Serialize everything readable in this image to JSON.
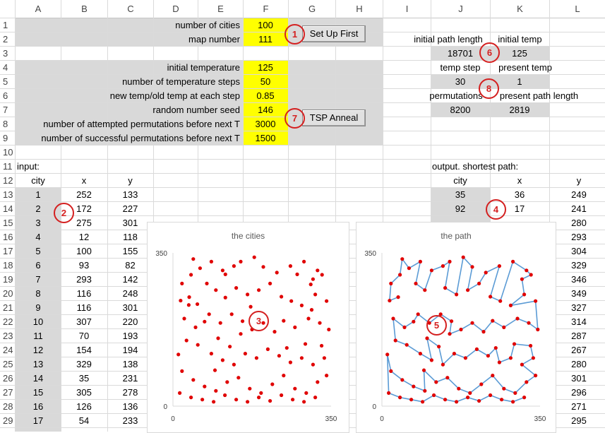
{
  "columns": [
    "A",
    "B",
    "C",
    "D",
    "E",
    "F",
    "G",
    "H",
    "I",
    "J",
    "K",
    "L"
  ],
  "rows": [
    "1",
    "2",
    "3",
    "4",
    "5",
    "6",
    "7",
    "8",
    "9",
    "10",
    "11",
    "12",
    "13",
    "14",
    "15",
    "16",
    "17",
    "18",
    "19",
    "20",
    "21",
    "22",
    "23",
    "24",
    "25",
    "26",
    "27",
    "28",
    "29"
  ],
  "params": [
    {
      "label": "number of cities",
      "value": "100"
    },
    {
      "label": "map number",
      "value": "111"
    },
    {
      "label": "initial temperature",
      "value": "125"
    },
    {
      "label": "number of temperature steps",
      "value": "50"
    },
    {
      "label": "new temp/old temp at each step",
      "value": "0.85"
    },
    {
      "label": "random number seed",
      "value": "146"
    },
    {
      "label": "number of attempted permutations before next T",
      "value": "3000"
    },
    {
      "label": "number of successful permutations before next T",
      "value": "1500"
    }
  ],
  "buttons": {
    "setup": "Set Up First",
    "anneal": "TSP Anneal"
  },
  "status": {
    "init_path_label": "initial path length",
    "init_temp_label": "initial temp",
    "init_path_value": "18701",
    "init_temp_value": "125",
    "temp_step_label": "temp  step",
    "present_temp_label": "present temp",
    "temp_step_value": "30",
    "present_temp_value": "1",
    "perm_label": "permutations",
    "present_path_label": "present path length",
    "perm_value": "8200",
    "present_path_value": "2819"
  },
  "input": {
    "title": "input:",
    "headers": [
      "city",
      "x",
      "y"
    ],
    "rows": [
      [
        "1",
        "252",
        "133"
      ],
      [
        "2",
        "172",
        "227"
      ],
      [
        "3",
        "275",
        "301"
      ],
      [
        "4",
        "12",
        "118"
      ],
      [
        "5",
        "100",
        "155"
      ],
      [
        "6",
        "93",
        "82"
      ],
      [
        "7",
        "293",
        "142"
      ],
      [
        "8",
        "116",
        "248"
      ],
      [
        "9",
        "116",
        "301"
      ],
      [
        "10",
        "307",
        "220"
      ],
      [
        "11",
        "70",
        "193"
      ],
      [
        "12",
        "154",
        "194"
      ],
      [
        "13",
        "329",
        "138"
      ],
      [
        "14",
        "35",
        "231"
      ],
      [
        "15",
        "305",
        "278"
      ],
      [
        "16",
        "126",
        "136"
      ],
      [
        "17",
        "54",
        "233"
      ]
    ]
  },
  "output": {
    "title": "output.  shortest path:",
    "headers": [
      "city",
      "x",
      "y"
    ],
    "rows": [
      [
        "35",
        "36",
        "249"
      ],
      [
        "92",
        "17",
        "241"
      ]
    ],
    "y_tail": [
      "280",
      "293",
      "304",
      "329",
      "346",
      "349",
      "327",
      "314",
      "287",
      "267",
      "280",
      "301",
      "296",
      "271",
      "295"
    ]
  },
  "markers": [
    "1",
    "2",
    "3",
    "4",
    "5",
    "6",
    "7",
    "8"
  ],
  "chart_data": [
    {
      "type": "scatter",
      "title": "the cities",
      "xlim": [
        0,
        350
      ],
      "ylim": [
        0,
        350
      ],
      "xticks": [
        "0",
        "350"
      ],
      "yticks": [
        "0",
        "350"
      ],
      "color": "#e00000",
      "points": [
        [
          252,
          133
        ],
        [
          172,
          227
        ],
        [
          275,
          301
        ],
        [
          12,
          118
        ],
        [
          100,
          155
        ],
        [
          93,
          82
        ],
        [
          293,
          142
        ],
        [
          116,
          248
        ],
        [
          116,
          301
        ],
        [
          307,
          220
        ],
        [
          70,
          193
        ],
        [
          154,
          194
        ],
        [
          329,
          138
        ],
        [
          35,
          231
        ],
        [
          305,
          278
        ],
        [
          126,
          136
        ],
        [
          54,
          233
        ],
        [
          36,
          249
        ],
        [
          17,
          241
        ],
        [
          45,
          336
        ],
        [
          60,
          315
        ],
        [
          85,
          330
        ],
        [
          110,
          310
        ],
        [
          135,
          320
        ],
        [
          150,
          330
        ],
        [
          180,
          340
        ],
        [
          200,
          318
        ],
        [
          230,
          305
        ],
        [
          260,
          320
        ],
        [
          290,
          330
        ],
        [
          320,
          310
        ],
        [
          310,
          290
        ],
        [
          330,
          300
        ],
        [
          20,
          280
        ],
        [
          40,
          300
        ],
        [
          75,
          280
        ],
        [
          95,
          265
        ],
        [
          140,
          270
        ],
        [
          165,
          255
        ],
        [
          190,
          265
        ],
        [
          215,
          280
        ],
        [
          240,
          250
        ],
        [
          262,
          240
        ],
        [
          285,
          230
        ],
        [
          315,
          255
        ],
        [
          340,
          240
        ],
        [
          25,
          200
        ],
        [
          50,
          180
        ],
        [
          80,
          210
        ],
        [
          105,
          190
        ],
        [
          130,
          210
        ],
        [
          150,
          165
        ],
        [
          175,
          175
        ],
        [
          200,
          190
        ],
        [
          225,
          170
        ],
        [
          245,
          195
        ],
        [
          270,
          180
        ],
        [
          300,
          200
        ],
        [
          325,
          190
        ],
        [
          345,
          175
        ],
        [
          30,
          150
        ],
        [
          55,
          140
        ],
        [
          85,
          120
        ],
        [
          110,
          105
        ],
        [
          135,
          95
        ],
        [
          160,
          120
        ],
        [
          185,
          110
        ],
        [
          210,
          130
        ],
        [
          235,
          115
        ],
        [
          260,
          100
        ],
        [
          285,
          110
        ],
        [
          310,
          95
        ],
        [
          335,
          110
        ],
        [
          20,
          80
        ],
        [
          45,
          60
        ],
        [
          70,
          45
        ],
        [
          95,
          35
        ],
        [
          120,
          55
        ],
        [
          145,
          65
        ],
        [
          170,
          40
        ],
        [
          195,
          30
        ],
        [
          220,
          50
        ],
        [
          245,
          70
        ],
        [
          270,
          40
        ],
        [
          295,
          30
        ],
        [
          320,
          55
        ],
        [
          340,
          70
        ],
        [
          15,
          30
        ],
        [
          40,
          20
        ],
        [
          65,
          15
        ],
        [
          90,
          10
        ],
        [
          115,
          25
        ],
        [
          140,
          15
        ],
        [
          165,
          10
        ],
        [
          190,
          20
        ],
        [
          215,
          12
        ],
        [
          240,
          25
        ],
        [
          265,
          15
        ],
        [
          290,
          10
        ],
        [
          315,
          20
        ]
      ]
    },
    {
      "type": "line",
      "title": "the path",
      "xlim": [
        0,
        350
      ],
      "ylim": [
        0,
        350
      ],
      "xticks": [
        "0",
        "350"
      ],
      "yticks": [
        "0",
        "350"
      ],
      "line_color": "#5b9bd5",
      "marker_color": "#e00000",
      "points": [
        [
          36,
          249
        ],
        [
          17,
          241
        ],
        [
          20,
          280
        ],
        [
          40,
          300
        ],
        [
          45,
          336
        ],
        [
          60,
          315
        ],
        [
          85,
          330
        ],
        [
          75,
          280
        ],
        [
          95,
          265
        ],
        [
          110,
          310
        ],
        [
          135,
          320
        ],
        [
          150,
          330
        ],
        [
          140,
          270
        ],
        [
          165,
          255
        ],
        [
          180,
          340
        ],
        [
          200,
          318
        ],
        [
          190,
          265
        ],
        [
          215,
          280
        ],
        [
          230,
          305
        ],
        [
          260,
          320
        ],
        [
          240,
          250
        ],
        [
          262,
          240
        ],
        [
          290,
          330
        ],
        [
          320,
          310
        ],
        [
          330,
          300
        ],
        [
          310,
          290
        ],
        [
          315,
          255
        ],
        [
          285,
          230
        ],
        [
          340,
          240
        ],
        [
          345,
          175
        ],
        [
          325,
          190
        ],
        [
          300,
          200
        ],
        [
          270,
          180
        ],
        [
          245,
          195
        ],
        [
          225,
          170
        ],
        [
          200,
          190
        ],
        [
          175,
          175
        ],
        [
          150,
          165
        ],
        [
          154,
          194
        ],
        [
          130,
          210
        ],
        [
          105,
          190
        ],
        [
          80,
          210
        ],
        [
          70,
          193
        ],
        [
          50,
          180
        ],
        [
          25,
          200
        ],
        [
          30,
          150
        ],
        [
          55,
          140
        ],
        [
          85,
          120
        ],
        [
          110,
          105
        ],
        [
          100,
          155
        ],
        [
          126,
          136
        ],
        [
          135,
          95
        ],
        [
          160,
          120
        ],
        [
          185,
          110
        ],
        [
          210,
          130
        ],
        [
          235,
          115
        ],
        [
          252,
          133
        ],
        [
          260,
          100
        ],
        [
          285,
          110
        ],
        [
          293,
          142
        ],
        [
          329,
          138
        ],
        [
          335,
          110
        ],
        [
          310,
          95
        ],
        [
          340,
          70
        ],
        [
          320,
          55
        ],
        [
          295,
          30
        ],
        [
          270,
          40
        ],
        [
          245,
          70
        ],
        [
          220,
          50
        ],
        [
          195,
          30
        ],
        [
          170,
          40
        ],
        [
          145,
          65
        ],
        [
          120,
          55
        ],
        [
          93,
          82
        ],
        [
          95,
          35
        ],
        [
          70,
          45
        ],
        [
          45,
          60
        ],
        [
          20,
          80
        ],
        [
          12,
          118
        ],
        [
          15,
          30
        ],
        [
          40,
          20
        ],
        [
          65,
          15
        ],
        [
          90,
          10
        ],
        [
          115,
          25
        ],
        [
          140,
          15
        ],
        [
          165,
          10
        ],
        [
          190,
          20
        ],
        [
          215,
          12
        ],
        [
          240,
          25
        ],
        [
          265,
          15
        ],
        [
          290,
          10
        ],
        [
          315,
          20
        ]
      ]
    }
  ]
}
